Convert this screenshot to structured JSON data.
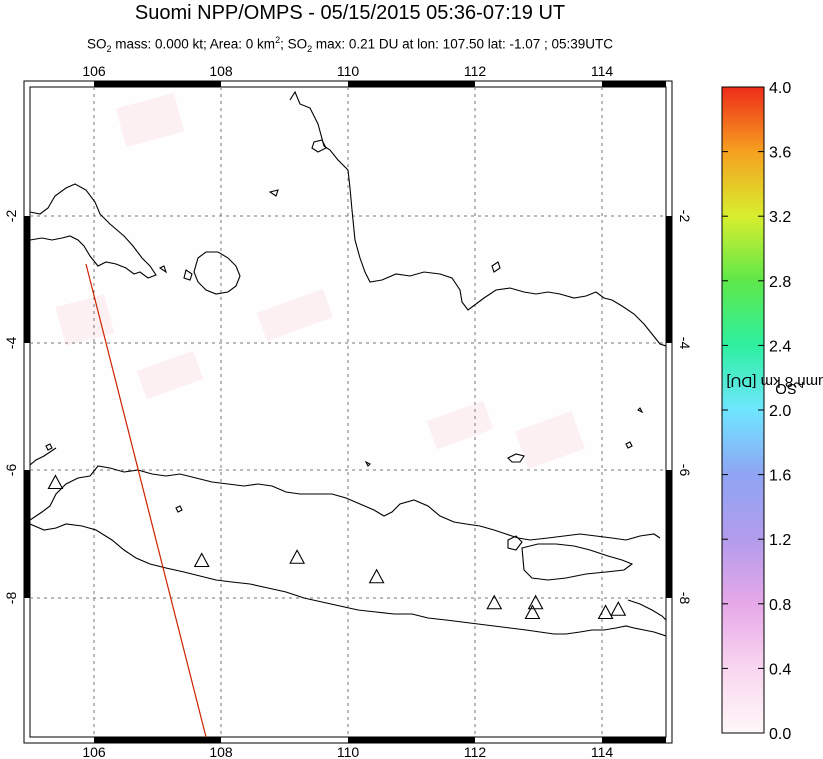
{
  "title": "Suomi NPP/OMPS - 05/15/2015 05:36-07:19 UT",
  "subtitle": {
    "so2_mass_label": "SO",
    "so2_mass_value": "mass: 0.000 kt; Area: 0 km",
    "so2_max_label": "; SO",
    "so2_max_value": "max: 0.21 DU at lon: 107.50 lat: -1.07 ; 05:39UTC",
    "sub2": "2",
    "sup2": "2"
  },
  "map": {
    "lon_ticks": [
      "106",
      "108",
      "110",
      "112",
      "114"
    ],
    "lat_ticks_left": [
      "-2",
      "-4",
      "-6",
      "-8"
    ],
    "lat_ticks_right": [
      "-2",
      "-4",
      "-6",
      "-8"
    ],
    "lon_range": [
      105,
      115
    ],
    "lat_range": [
      -10,
      0
    ],
    "volcano_marker": "triangle",
    "volcanoes": [
      {
        "lon": 105.4,
        "lat": -6.1
      },
      {
        "lon": 107.7,
        "lat": -7.3
      },
      {
        "lon": 109.2,
        "lat": -7.25
      },
      {
        "lon": 110.45,
        "lat": -7.55
      },
      {
        "lon": 112.3,
        "lat": -7.95
      },
      {
        "lon": 112.95,
        "lat": -7.95
      },
      {
        "lon": 112.9,
        "lat": -8.1
      },
      {
        "lon": 114.05,
        "lat": -8.1
      },
      {
        "lon": 114.25,
        "lat": -8.05
      }
    ],
    "swath_edge_color": "#cc2200"
  },
  "colorbar": {
    "title": "SO",
    "title_sub": "2",
    "title_rest": " column 8 km [DU]",
    "ticks": [
      "4.0",
      "3.6",
      "3.2",
      "2.8",
      "2.4",
      "2.0",
      "1.6",
      "1.2",
      "0.8",
      "0.4",
      "0.0"
    ],
    "range": [
      0.0,
      4.0
    ]
  }
}
